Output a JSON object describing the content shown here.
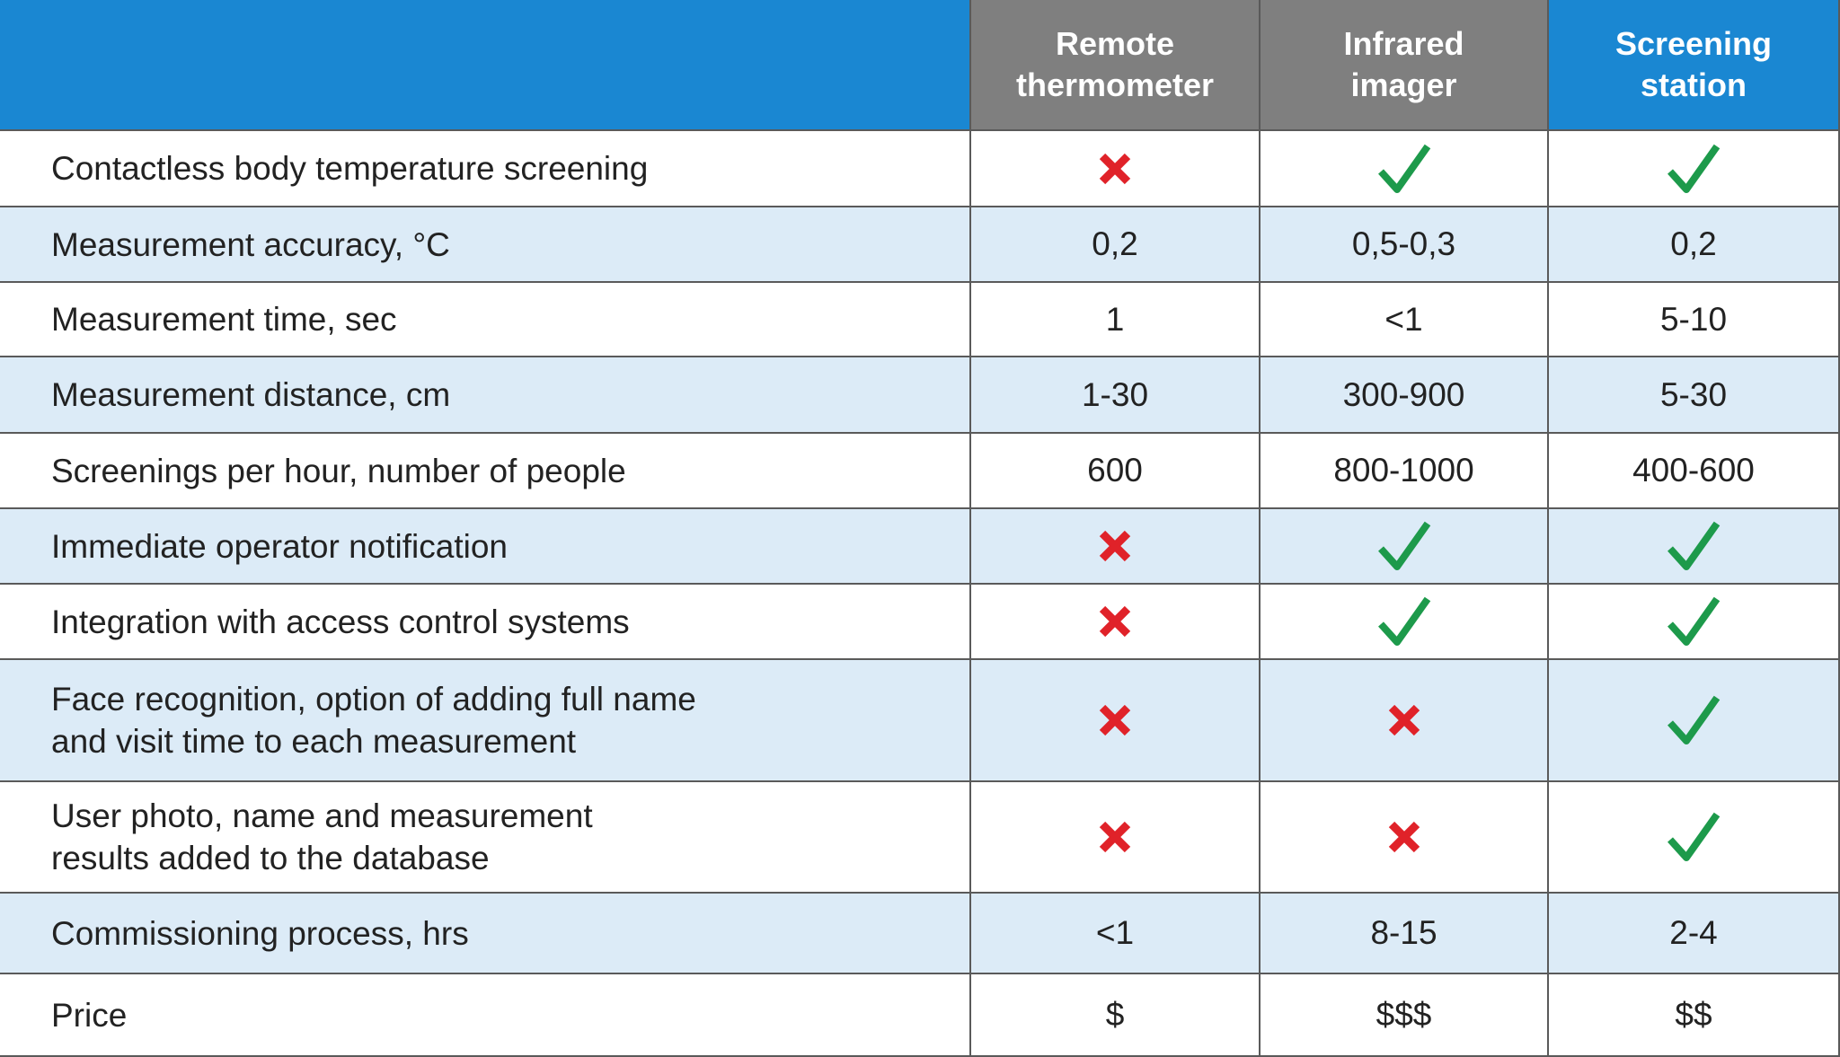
{
  "table": {
    "columns": [
      "Remote thermometer",
      "Infrared imager",
      "Screening station"
    ],
    "rows": [
      {
        "label": [
          "Contactless body temperature screening"
        ],
        "cells": [
          false,
          true,
          true
        ]
      },
      {
        "label": [
          "Measurement accuracy, °C"
        ],
        "cells": [
          "0,2",
          "0,5-0,3",
          "0,2"
        ]
      },
      {
        "label": [
          "Measurement time, sec"
        ],
        "cells": [
          "1",
          "<1",
          "5-10"
        ]
      },
      {
        "label": [
          "Measurement distance, cm"
        ],
        "cells": [
          "1-30",
          "300-900",
          "5-30"
        ]
      },
      {
        "label": [
          "Screenings per hour, number of people"
        ],
        "cells": [
          "600",
          "800-1000",
          "400-600"
        ]
      },
      {
        "label": [
          "Immediate operator notification"
        ],
        "cells": [
          false,
          true,
          true
        ]
      },
      {
        "label": [
          "Integration with access control systems"
        ],
        "cells": [
          false,
          true,
          true
        ]
      },
      {
        "label": [
          "Face recognition, option of adding full name",
          "and visit time to each measurement"
        ],
        "cells": [
          false,
          false,
          true
        ]
      },
      {
        "label": [
          "User photo, name and measurement",
          "results added to the database"
        ],
        "cells": [
          false,
          false,
          true
        ]
      },
      {
        "label": [
          "Commissioning process, hrs"
        ],
        "cells": [
          "<1",
          "8-15",
          "2-4"
        ]
      },
      {
        "label": [
          "Price"
        ],
        "cells": [
          "$",
          "$$$",
          "$$"
        ]
      }
    ]
  }
}
